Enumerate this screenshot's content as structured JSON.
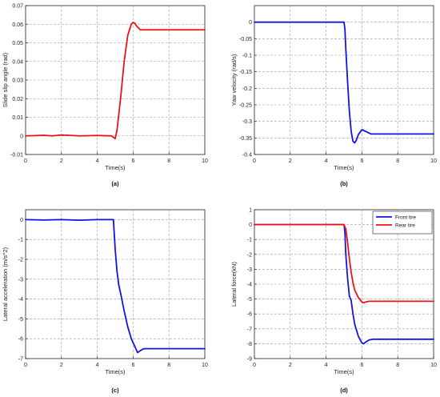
{
  "chart_data": [
    {
      "type": "line",
      "caption": "(a)",
      "xlabel": "Time(s)",
      "ylabel": "Slide slip angle (rad)",
      "xlim": [
        0,
        10
      ],
      "ylim": [
        -0.01,
        0.07
      ],
      "xticks": [
        "0",
        "2",
        "4",
        "6",
        "8",
        "10"
      ],
      "yticks": [
        "-0.01",
        "0",
        "0.01",
        "0.02",
        "0.03",
        "0.04",
        "0.05",
        "0.06",
        "0.07"
      ],
      "grid": true,
      "legend": null,
      "series": [
        {
          "color": "#e8141a",
          "x": [
            0,
            1,
            1.5,
            2,
            3,
            4,
            4.8,
            5,
            5.1,
            5.3,
            5.5,
            5.7,
            5.9,
            6.0,
            6.1,
            6.2,
            6.4,
            6.6,
            7,
            8,
            9,
            10
          ],
          "y": [
            0,
            0.0003,
            0,
            0.0005,
            0,
            0.0002,
            0,
            -0.0015,
            0.003,
            0.02,
            0.04,
            0.054,
            0.06,
            0.061,
            0.0605,
            0.059,
            0.057,
            0.057,
            0.057,
            0.057,
            0.057,
            0.057
          ]
        }
      ]
    },
    {
      "type": "line",
      "caption": "(b)",
      "xlabel": "Time(s)",
      "ylabel": "Yaw velocity (rad/s)",
      "xlim": [
        0,
        10
      ],
      "ylim": [
        -0.4,
        0.05
      ],
      "xticks": [
        "0",
        "2",
        "4",
        "6",
        "8",
        "10"
      ],
      "yticks": [
        "-0.4",
        "-0.35",
        "-0.3",
        "-0.25",
        "-0.2",
        "-0.15",
        "-0.1",
        "-0.05",
        "0"
      ],
      "grid": true,
      "legend": null,
      "series": [
        {
          "color": "#1414e0",
          "x": [
            0,
            2,
            4,
            5,
            5.05,
            5.1,
            5.2,
            5.3,
            5.4,
            5.5,
            5.6,
            5.7,
            5.8,
            6.0,
            6.2,
            6.5,
            7,
            8,
            9,
            10
          ],
          "y": [
            0,
            0,
            0,
            0,
            -0.02,
            -0.08,
            -0.18,
            -0.27,
            -0.33,
            -0.36,
            -0.365,
            -0.355,
            -0.34,
            -0.325,
            -0.33,
            -0.338,
            -0.338,
            -0.338,
            -0.338,
            -0.338
          ]
        }
      ]
    },
    {
      "type": "line",
      "caption": "(c)",
      "xlabel": "Time(s)",
      "ylabel": "Lateral acceleration (m/s^2)",
      "xlim": [
        0,
        10
      ],
      "ylim": [
        -7,
        0.5
      ],
      "xticks": [
        "0",
        "2",
        "4",
        "6",
        "8",
        "10"
      ],
      "yticks": [
        "-7",
        "-6",
        "-5",
        "-4",
        "-3",
        "-2",
        "-1",
        "0"
      ],
      "grid": true,
      "legend": null,
      "series": [
        {
          "color": "#1414e0",
          "x": [
            0,
            1,
            2,
            3,
            4,
            4.9,
            5.0,
            5.1,
            5.2,
            5.3,
            5.5,
            5.7,
            5.9,
            6.1,
            6.25,
            6.4,
            6.6,
            7,
            8,
            9,
            10
          ],
          "y": [
            0,
            -0.02,
            0,
            -0.03,
            0,
            0,
            -1.5,
            -2.6,
            -3.3,
            -3.7,
            -4.6,
            -5.4,
            -6.0,
            -6.4,
            -6.7,
            -6.6,
            -6.5,
            -6.5,
            -6.5,
            -6.5,
            -6.5
          ]
        }
      ]
    },
    {
      "type": "line",
      "caption": "(d)",
      "xlabel": "Time(s)",
      "ylabel": "Lateral force(kN)",
      "xlim": [
        0,
        10
      ],
      "ylim": [
        -9,
        1
      ],
      "xticks": [
        "0",
        "2",
        "4",
        "6",
        "8",
        "10"
      ],
      "yticks": [
        "-9",
        "-8",
        "-7",
        "-6",
        "-5",
        "-4",
        "-3",
        "-2",
        "-1",
        "0",
        "1"
      ],
      "grid": true,
      "legend": "top-right",
      "series": [
        {
          "name": "Front tire",
          "color": "#1414e0",
          "x": [
            0,
            2,
            4,
            5,
            5.05,
            5.1,
            5.2,
            5.3,
            5.4,
            5.5,
            5.6,
            5.8,
            6.0,
            6.1,
            6.2,
            6.4,
            6.6,
            7,
            8,
            9,
            10
          ],
          "y": [
            0,
            0,
            0,
            0,
            -0.5,
            -2.0,
            -3.6,
            -4.8,
            -5.1,
            -6.0,
            -6.7,
            -7.5,
            -7.95,
            -8.0,
            -7.9,
            -7.75,
            -7.7,
            -7.7,
            -7.7,
            -7.7,
            -7.7
          ]
        },
        {
          "name": "Rear tire",
          "color": "#e8141a",
          "x": [
            0,
            2,
            4,
            5,
            5.1,
            5.2,
            5.3,
            5.4,
            5.5,
            5.6,
            5.8,
            6.0,
            6.1,
            6.2,
            6.4,
            6.6,
            7,
            8,
            9,
            10
          ],
          "y": [
            0,
            0,
            0,
            0,
            -0.3,
            -1.2,
            -2.3,
            -3.2,
            -3.9,
            -4.4,
            -4.9,
            -5.2,
            -5.25,
            -5.2,
            -5.15,
            -5.15,
            -5.15,
            -5.15,
            -5.15,
            -5.15
          ]
        }
      ]
    }
  ]
}
